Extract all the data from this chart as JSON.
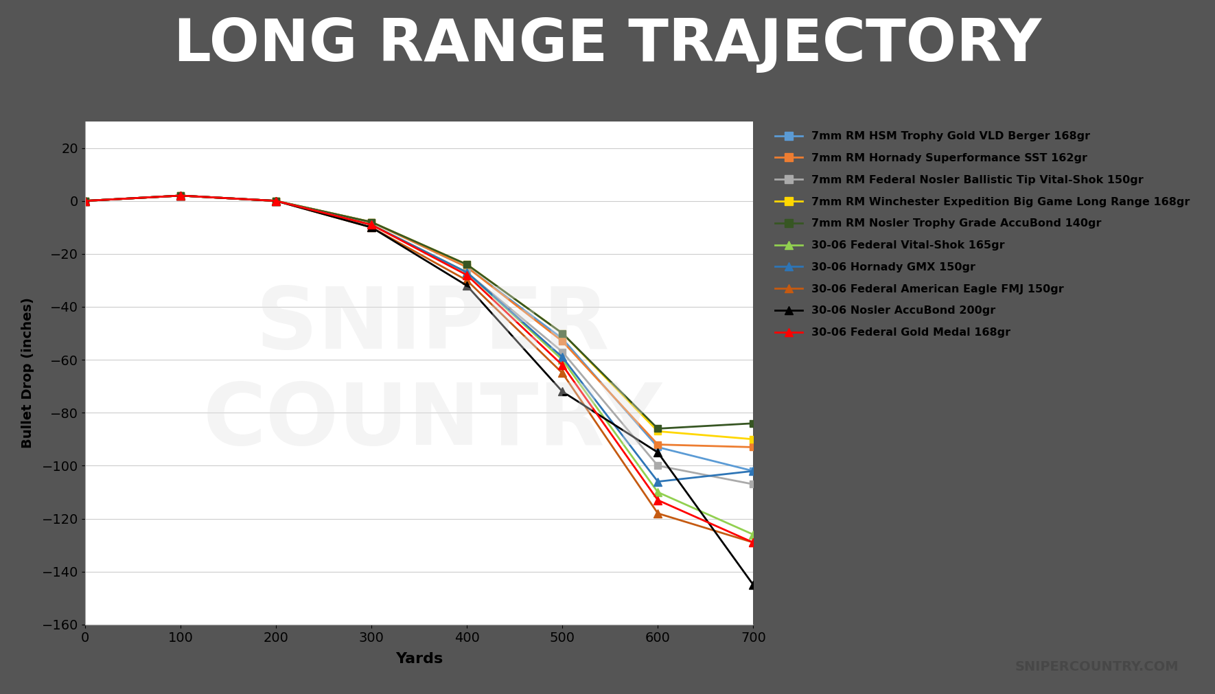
{
  "title": "LONG RANGE TRAJECTORY",
  "xlabel": "Yards",
  "ylabel": "Bullet Drop (inches)",
  "title_bg_color": "#555555",
  "red_bar_color": "#E8605A",
  "chart_bg_color": "#FFFFFF",
  "watermark_color": "#DDDDDD",
  "xlim": [
    0,
    700
  ],
  "ylim": [
    -160,
    30
  ],
  "xticks": [
    0,
    100,
    200,
    300,
    400,
    500,
    600,
    700
  ],
  "yticks": [
    -160,
    -140,
    -120,
    -100,
    -80,
    -60,
    -40,
    -20,
    0,
    20
  ],
  "series": [
    {
      "label": "7mm RM HSM Trophy Gold VLD Berger 168gr",
      "color": "#5B9BD5",
      "marker": "s",
      "markersize": 7,
      "linewidth": 2,
      "x": [
        0,
        100,
        200,
        300,
        400,
        500,
        600,
        700
      ],
      "y": [
        0,
        2,
        0,
        -8,
        -25,
        -52,
        -93,
        -102
      ]
    },
    {
      "label": "7mm RM Hornady Superformance SST 162gr",
      "color": "#ED7D31",
      "marker": "s",
      "markersize": 7,
      "linewidth": 2,
      "x": [
        0,
        100,
        200,
        300,
        400,
        500,
        600,
        700
      ],
      "y": [
        0,
        2,
        0,
        -8,
        -25,
        -53,
        -92,
        -93
      ]
    },
    {
      "label": "7mm RM Federal Nosler Ballistic Tip Vital-Shok 150gr",
      "color": "#AAAAAA",
      "marker": "s",
      "markersize": 7,
      "linewidth": 2,
      "x": [
        0,
        100,
        200,
        300,
        400,
        500,
        600,
        700
      ],
      "y": [
        0,
        2,
        0,
        -9,
        -27,
        -57,
        -100,
        -107
      ]
    },
    {
      "label": "7mm RM Winchester Expedition Big Game Long Range 168gr",
      "color": "#FFD700",
      "marker": "s",
      "markersize": 7,
      "linewidth": 2,
      "x": [
        0,
        100,
        200,
        300,
        400,
        500,
        600,
        700
      ],
      "y": [
        0,
        2,
        0,
        -8,
        -24,
        -50,
        -87,
        -90
      ]
    },
    {
      "label": "7mm RM Nosler Trophy Grade AccuBond 140gr",
      "color": "#375623",
      "marker": "s",
      "markersize": 7,
      "linewidth": 2,
      "x": [
        0,
        100,
        200,
        300,
        400,
        500,
        600,
        700
      ],
      "y": [
        0,
        2,
        0,
        -8,
        -24,
        -50,
        -86,
        -84
      ]
    },
    {
      "label": "30-06 Federal Vital-Shok 165gr",
      "color": "#92D050",
      "marker": "^",
      "markersize": 8,
      "linewidth": 2,
      "x": [
        0,
        100,
        200,
        300,
        400,
        500,
        600,
        700
      ],
      "y": [
        0,
        2,
        0,
        -9,
        -27,
        -60,
        -110,
        -126
      ]
    },
    {
      "label": "30-06 Hornady GMX 150gr",
      "color": "#2E75B6",
      "marker": "^",
      "markersize": 8,
      "linewidth": 2,
      "x": [
        0,
        100,
        200,
        300,
        400,
        500,
        600,
        700
      ],
      "y": [
        0,
        2,
        0,
        -9,
        -27,
        -59,
        -106,
        -102
      ]
    },
    {
      "label": "30-06 Federal American Eagle FMJ 150gr",
      "color": "#C55A11",
      "marker": "^",
      "markersize": 8,
      "linewidth": 2,
      "x": [
        0,
        100,
        200,
        300,
        400,
        500,
        600,
        700
      ],
      "y": [
        0,
        2,
        0,
        -10,
        -30,
        -65,
        -118,
        -129
      ]
    },
    {
      "label": "30-06 Nosler AccuBond 200gr",
      "color": "#000000",
      "marker": "^",
      "markersize": 8,
      "linewidth": 2,
      "x": [
        0,
        100,
        200,
        300,
        400,
        500,
        600,
        700
      ],
      "y": [
        0,
        2,
        0,
        -10,
        -32,
        -72,
        -95,
        -145
      ]
    },
    {
      "label": "30-06 Federal Gold Medal 168gr",
      "color": "#FF0000",
      "marker": "^",
      "markersize": 8,
      "linewidth": 2,
      "x": [
        0,
        100,
        200,
        300,
        400,
        500,
        600,
        700
      ],
      "y": [
        0,
        2,
        0,
        -9,
        -28,
        -62,
        -113,
        -129
      ]
    }
  ],
  "snipercountry_text": "SNIPERCOUNTRY.COM",
  "watermark_text": "SNIPER\nCOUNTRY"
}
